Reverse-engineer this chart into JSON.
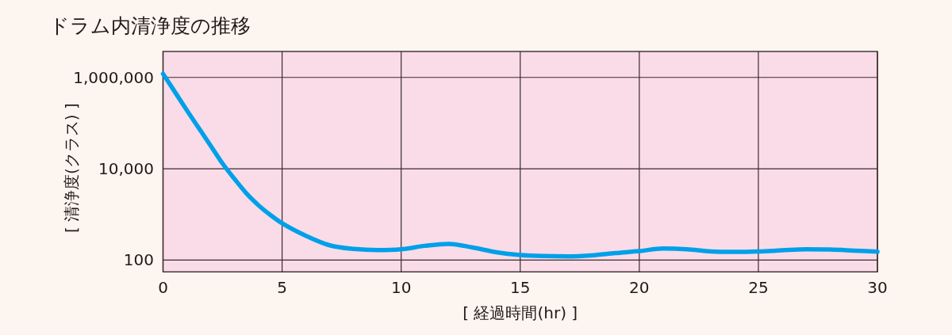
{
  "chart_data": {
    "type": "line",
    "title": "ドラム内清浄度の推移",
    "xlabel": "[ 経過時間(hr) ]",
    "ylabel": "[ 清浄度(クラス) ]",
    "x": [
      0,
      0.5,
      1,
      1.5,
      2,
      2.5,
      3,
      3.5,
      4,
      4.5,
      5,
      6,
      7,
      8,
      9,
      10,
      11,
      12,
      13,
      14,
      15,
      16,
      17,
      18,
      19,
      20,
      21,
      22,
      23,
      24,
      25,
      26,
      27,
      28,
      29,
      30
    ],
    "values": [
      1200000,
      480000,
      190000,
      78000,
      32000,
      13000,
      6000,
      2900,
      1600,
      980,
      640,
      340,
      210,
      175,
      165,
      172,
      205,
      226,
      188,
      148,
      129,
      122,
      120,
      126,
      142,
      157,
      179,
      172,
      154,
      151,
      154,
      163,
      172,
      170,
      161,
      152
    ],
    "color": "#00a0e9",
    "line_style": "solid",
    "log": "y",
    "xlim": [
      0,
      30
    ],
    "xticks": [
      0,
      5,
      10,
      15,
      20,
      25,
      30
    ],
    "ylim": [
      55,
      3700000
    ],
    "yticks": [
      100,
      {
        "value": 10000,
        "label": "10,000"
      },
      {
        "value": 1000000,
        "label": "1,000,000"
      }
    ],
    "grid": true
  }
}
